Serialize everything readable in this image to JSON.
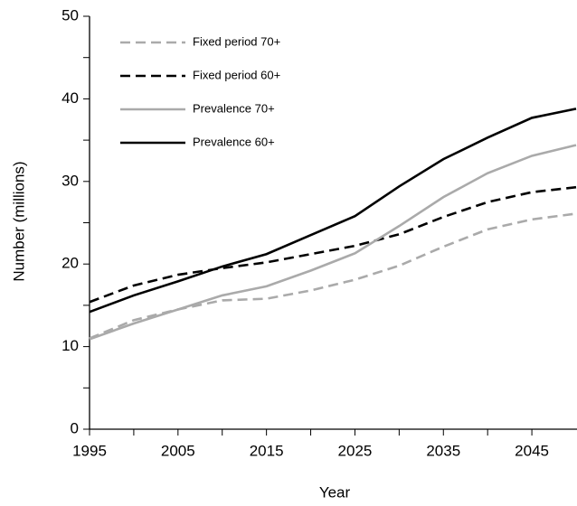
{
  "chart_data": {
    "type": "line",
    "x_label": "Year",
    "y_label": "Number (millions)",
    "x": [
      1995,
      2000,
      2005,
      2010,
      2015,
      2020,
      2025,
      2030,
      2035,
      2040,
      2045,
      2050
    ],
    "series": [
      {
        "name": "Fixed period 70+",
        "color": "#aaaaaa",
        "dashed": true,
        "values": [
          11.0,
          13.2,
          14.5,
          15.6,
          15.8,
          16.8,
          18.1,
          19.8,
          22.1,
          24.2,
          25.4,
          26.1
        ]
      },
      {
        "name": "Fixed period 60+",
        "color": "#000000",
        "dashed": true,
        "values": [
          15.4,
          17.4,
          18.7,
          19.5,
          20.2,
          21.2,
          22.2,
          23.6,
          25.7,
          27.5,
          28.7,
          29.3
        ]
      },
      {
        "name": "Prevalence 70+",
        "color": "#aaaaaa",
        "dashed": false,
        "values": [
          10.9,
          12.8,
          14.5,
          16.2,
          17.3,
          19.2,
          21.3,
          24.6,
          28.1,
          31.0,
          33.1,
          34.4
        ]
      },
      {
        "name": "Prevalence 60+",
        "color": "#000000",
        "dashed": false,
        "values": [
          14.2,
          16.2,
          17.9,
          19.7,
          21.2,
          23.5,
          25.8,
          29.4,
          32.7,
          35.3,
          37.7,
          38.8
        ]
      }
    ],
    "xlim": [
      1995,
      2050
    ],
    "xticks": [
      1995,
      2005,
      2015,
      2025,
      2035,
      2045
    ],
    "ylim": [
      0,
      50
    ],
    "yticks": [
      0,
      10,
      20,
      30,
      40,
      50
    ],
    "grid": false,
    "legend": "upper-left"
  }
}
